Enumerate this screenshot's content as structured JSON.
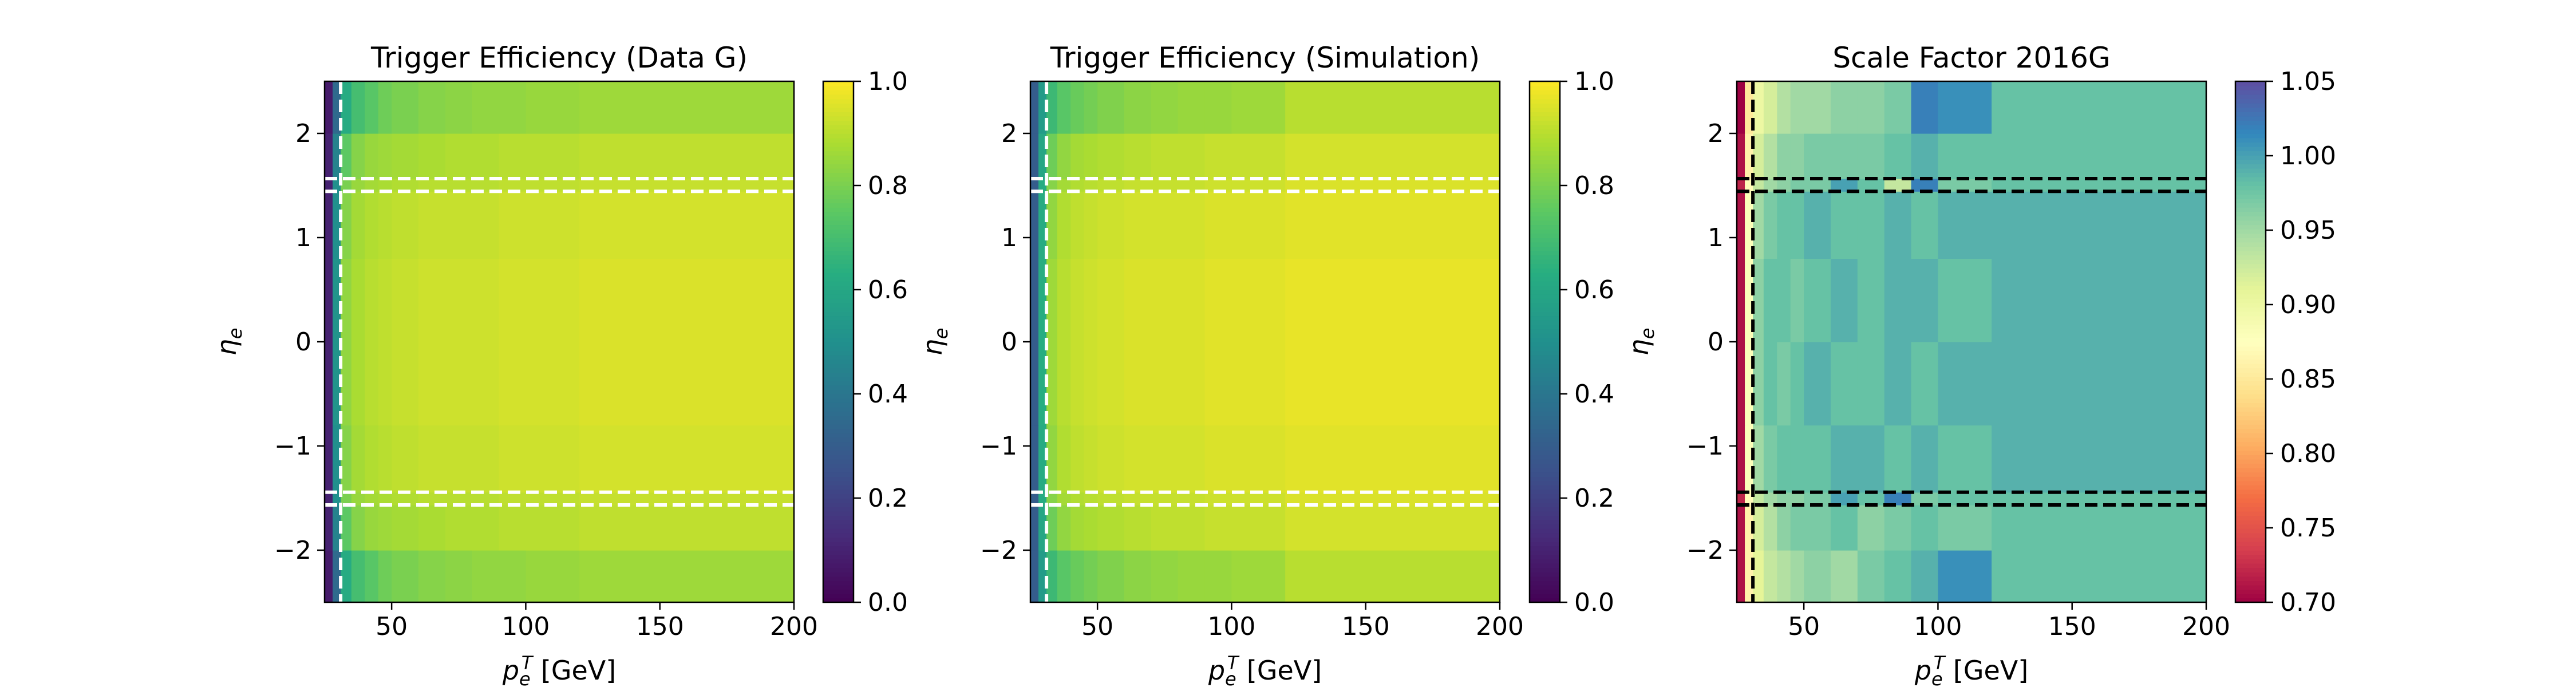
{
  "figure": {
    "colors": {
      "background": "#ffffff",
      "axis": "#000000",
      "overlay_dark": "#000000",
      "overlay_light": "#ffffff"
    }
  },
  "chart_data": [
    {
      "type": "heatmap",
      "title": "Trigger Efficiency (Data G)",
      "xlabel": "p_e^T [GeV]",
      "ylabel": "η_e",
      "xlim": [
        25,
        200
      ],
      "ylim": [
        -2.5,
        2.5
      ],
      "x_ticks": [
        50,
        100,
        150,
        200
      ],
      "x_tick_labels": [
        "50",
        "100",
        "150",
        "200"
      ],
      "y_ticks": [
        -2,
        -1,
        0,
        1,
        2
      ],
      "y_tick_labels": [
        "−2",
        "−1",
        "0",
        "1",
        "2"
      ],
      "colormap": "viridis",
      "colorbar": {
        "range": [
          0.0,
          1.0
        ],
        "ticks": [
          "0.0",
          "0.2",
          "0.4",
          "0.6",
          "0.8",
          "1.0"
        ],
        "tick_values": [
          0.0,
          0.2,
          0.4,
          0.6,
          0.8,
          1.0
        ]
      },
      "x_bins": [
        25,
        28,
        31,
        35,
        40,
        45,
        50,
        60,
        70,
        80,
        90,
        100,
        120,
        200
      ],
      "y_bins": [
        -2.5,
        -2.0,
        -1.566,
        -1.444,
        -0.8,
        0.0,
        0.8,
        1.444,
        1.566,
        2.0,
        2.5
      ],
      "values": [
        [
          0.08,
          0.35,
          0.62,
          0.7,
          0.74,
          0.78,
          0.8,
          0.82,
          0.83,
          0.84,
          0.84,
          0.85,
          0.86
        ],
        [
          0.1,
          0.45,
          0.75,
          0.82,
          0.85,
          0.86,
          0.87,
          0.88,
          0.89,
          0.89,
          0.9,
          0.9,
          0.91
        ],
        [
          0.1,
          0.5,
          0.8,
          0.85,
          0.87,
          0.88,
          0.89,
          0.9,
          0.9,
          0.9,
          0.91,
          0.91,
          0.92
        ],
        [
          0.1,
          0.5,
          0.82,
          0.87,
          0.89,
          0.9,
          0.91,
          0.92,
          0.92,
          0.92,
          0.93,
          0.93,
          0.94
        ],
        [
          0.1,
          0.52,
          0.84,
          0.88,
          0.9,
          0.91,
          0.92,
          0.93,
          0.93,
          0.93,
          0.94,
          0.94,
          0.95
        ],
        [
          0.1,
          0.52,
          0.84,
          0.88,
          0.9,
          0.91,
          0.92,
          0.93,
          0.93,
          0.93,
          0.94,
          0.94,
          0.95
        ],
        [
          0.1,
          0.5,
          0.82,
          0.87,
          0.89,
          0.9,
          0.91,
          0.92,
          0.92,
          0.92,
          0.93,
          0.93,
          0.94
        ],
        [
          0.1,
          0.5,
          0.8,
          0.85,
          0.87,
          0.88,
          0.89,
          0.9,
          0.9,
          0.9,
          0.91,
          0.91,
          0.92
        ],
        [
          0.1,
          0.45,
          0.75,
          0.82,
          0.85,
          0.86,
          0.87,
          0.88,
          0.89,
          0.89,
          0.9,
          0.9,
          0.91
        ],
        [
          0.08,
          0.35,
          0.62,
          0.7,
          0.74,
          0.78,
          0.8,
          0.82,
          0.83,
          0.84,
          0.84,
          0.85,
          0.86
        ]
      ],
      "overlay_lines": {
        "color": "#ffffff",
        "vertical_x": [
          31
        ],
        "horizontal_y": [
          -1.566,
          -1.444,
          1.444,
          1.566
        ]
      }
    },
    {
      "type": "heatmap",
      "title": "Trigger Efficiency (Simulation)",
      "xlabel": "p_e^T [GeV]",
      "ylabel": "η_e",
      "xlim": [
        25,
        200
      ],
      "ylim": [
        -2.5,
        2.5
      ],
      "x_ticks": [
        50,
        100,
        150,
        200
      ],
      "x_tick_labels": [
        "50",
        "100",
        "150",
        "200"
      ],
      "y_ticks": [
        -2,
        -1,
        0,
        1,
        2
      ],
      "y_tick_labels": [
        "−2",
        "−1",
        "0",
        "1",
        "2"
      ],
      "colormap": "viridis",
      "colorbar": {
        "range": [
          0.0,
          1.0
        ],
        "ticks": [
          "0.0",
          "0.2",
          "0.4",
          "0.6",
          "0.8",
          "1.0"
        ],
        "tick_values": [
          0.0,
          0.2,
          0.4,
          0.6,
          0.8,
          1.0
        ]
      },
      "x_bins": [
        25,
        28,
        31,
        35,
        40,
        45,
        50,
        60,
        70,
        80,
        90,
        100,
        120,
        200
      ],
      "y_bins": [
        -2.5,
        -2.0,
        -1.566,
        -1.444,
        -0.8,
        0.0,
        0.8,
        1.444,
        1.566,
        2.0,
        2.5
      ],
      "values": [
        [
          0.3,
          0.55,
          0.68,
          0.74,
          0.77,
          0.79,
          0.81,
          0.83,
          0.84,
          0.85,
          0.85,
          0.86,
          0.9
        ],
        [
          0.3,
          0.6,
          0.78,
          0.84,
          0.87,
          0.88,
          0.89,
          0.9,
          0.91,
          0.91,
          0.92,
          0.92,
          0.94
        ],
        [
          0.3,
          0.62,
          0.82,
          0.87,
          0.89,
          0.9,
          0.91,
          0.92,
          0.92,
          0.92,
          0.93,
          0.93,
          0.95
        ],
        [
          0.3,
          0.62,
          0.84,
          0.89,
          0.91,
          0.92,
          0.93,
          0.94,
          0.94,
          0.94,
          0.95,
          0.95,
          0.96
        ],
        [
          0.3,
          0.63,
          0.86,
          0.9,
          0.92,
          0.93,
          0.94,
          0.95,
          0.95,
          0.95,
          0.96,
          0.96,
          0.97
        ],
        [
          0.3,
          0.63,
          0.86,
          0.9,
          0.92,
          0.93,
          0.94,
          0.95,
          0.95,
          0.95,
          0.96,
          0.96,
          0.97
        ],
        [
          0.3,
          0.62,
          0.84,
          0.89,
          0.91,
          0.92,
          0.93,
          0.94,
          0.94,
          0.94,
          0.95,
          0.95,
          0.96
        ],
        [
          0.3,
          0.62,
          0.82,
          0.87,
          0.89,
          0.9,
          0.91,
          0.92,
          0.92,
          0.92,
          0.93,
          0.93,
          0.95
        ],
        [
          0.3,
          0.6,
          0.78,
          0.84,
          0.87,
          0.88,
          0.89,
          0.9,
          0.91,
          0.91,
          0.92,
          0.92,
          0.94
        ],
        [
          0.3,
          0.55,
          0.68,
          0.74,
          0.77,
          0.79,
          0.81,
          0.83,
          0.84,
          0.85,
          0.85,
          0.86,
          0.9
        ]
      ],
      "overlay_lines": {
        "color": "#ffffff",
        "vertical_x": [
          31
        ],
        "horizontal_y": [
          -1.566,
          -1.444,
          1.444,
          1.566
        ]
      }
    },
    {
      "type": "heatmap",
      "title": "Scale Factor 2016G",
      "xlabel": "p_e^T [GeV]",
      "ylabel": "η_e",
      "xlim": [
        25,
        200
      ],
      "ylim": [
        -2.5,
        2.5
      ],
      "x_ticks": [
        50,
        100,
        150,
        200
      ],
      "x_tick_labels": [
        "50",
        "100",
        "150",
        "200"
      ],
      "y_ticks": [
        -2,
        -1,
        0,
        1,
        2
      ],
      "y_tick_labels": [
        "−2",
        "−1",
        "0",
        "1",
        "2"
      ],
      "colormap": "spectral",
      "colorbar": {
        "range": [
          0.7,
          1.05
        ],
        "ticks": [
          "0.70",
          "0.75",
          "0.80",
          "0.85",
          "0.90",
          "0.95",
          "1.00",
          "1.05"
        ],
        "tick_values": [
          0.7,
          0.75,
          0.8,
          0.85,
          0.9,
          0.95,
          1.0,
          1.05
        ]
      },
      "x_bins": [
        25,
        28,
        31,
        35,
        40,
        45,
        50,
        60,
        70,
        80,
        90,
        100,
        120,
        200
      ],
      "y_bins": [
        -2.5,
        -2.0,
        -1.566,
        -1.444,
        -0.8,
        0.0,
        0.8,
        1.444,
        1.566,
        2.0,
        2.5
      ],
      "values": [
        [
          0.71,
          0.86,
          0.91,
          0.93,
          0.94,
          0.95,
          0.96,
          0.95,
          0.97,
          0.98,
          0.99,
          1.01,
          0.98
        ],
        [
          0.71,
          0.86,
          0.92,
          0.94,
          0.96,
          0.97,
          0.97,
          0.98,
          0.96,
          0.97,
          0.98,
          0.97,
          0.98
        ],
        [
          0.72,
          0.87,
          0.93,
          0.95,
          0.96,
          0.96,
          0.97,
          1.0,
          0.98,
          1.02,
          0.97,
          0.98,
          0.98
        ],
        [
          0.71,
          0.88,
          0.95,
          0.97,
          0.98,
          0.98,
          0.98,
          0.99,
          0.99,
          0.98,
          0.99,
          0.98,
          0.99
        ],
        [
          0.71,
          0.88,
          0.96,
          0.98,
          0.97,
          0.98,
          0.99,
          0.98,
          0.98,
          0.99,
          0.98,
          0.99,
          0.99
        ],
        [
          0.71,
          0.88,
          0.96,
          0.98,
          0.98,
          0.97,
          0.98,
          0.99,
          0.98,
          0.99,
          0.99,
          0.98,
          0.99
        ],
        [
          0.71,
          0.88,
          0.95,
          0.97,
          0.98,
          0.98,
          0.99,
          0.98,
          0.98,
          0.99,
          0.98,
          0.99,
          0.99
        ],
        [
          0.72,
          0.87,
          0.93,
          0.95,
          0.96,
          0.97,
          0.97,
          1.0,
          0.98,
          0.93,
          1.02,
          0.97,
          0.98
        ],
        [
          0.71,
          0.86,
          0.92,
          0.94,
          0.96,
          0.96,
          0.97,
          0.97,
          0.97,
          0.98,
          0.99,
          0.98,
          0.98
        ],
        [
          0.7,
          0.85,
          0.9,
          0.92,
          0.94,
          0.95,
          0.95,
          0.96,
          0.96,
          0.97,
          1.02,
          1.01,
          0.98
        ]
      ],
      "overlay_lines": {
        "color": "#000000",
        "vertical_x": [
          31
        ],
        "horizontal_y": [
          -1.566,
          -1.444,
          1.444,
          1.566
        ]
      }
    }
  ]
}
